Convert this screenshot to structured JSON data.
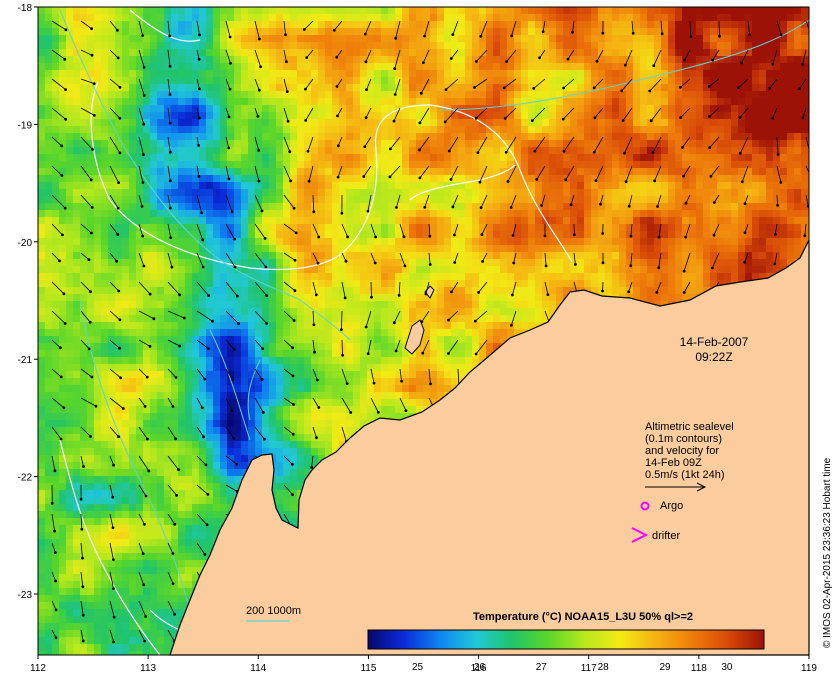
{
  "map": {
    "x_axis_ticks": [
      "112",
      "113",
      "114",
      "115",
      "116",
      "117",
      "118",
      "119"
    ],
    "y_axis_ticks": [
      "-18",
      "-19",
      "-20",
      "-21",
      "-22",
      "-23"
    ],
    "date_line": "14-Feb-2007",
    "time_line": "09:22Z",
    "legend_lines": [
      "Altimetric sealevel",
      "(0.1m contours)",
      "and velocity for",
      "14-Feb 09Z",
      "0.5m/s (1kt 24h)"
    ],
    "argo_label": "Argo",
    "drifter_label": "drifter",
    "bathymetry_label": "200  1000m",
    "credit": "© IMOS 02-Apr-2015 23:36:23 Hobart time",
    "colors": {
      "land": "#fbcc9e",
      "argo_symbol": "#ff00ff",
      "drifter_symbol": "#ff00ff",
      "isobath": "#5fd3d3",
      "sealevel_contour": "#ffffff"
    }
  },
  "colorbar": {
    "title": "Temperature (°C) NOAA15_L3U 50% ql>=2",
    "ticks": [
      "25",
      "26",
      "27",
      "28",
      "29",
      "30"
    ],
    "min": 24.2,
    "max": 30.6,
    "stops": [
      "#08086e",
      "#0a2bd8",
      "#0f86f0",
      "#22c8d8",
      "#20c46a",
      "#5ad62a",
      "#b6e81e",
      "#f2ea16",
      "#f5b212",
      "#ee7d0a",
      "#d84a08",
      "#9c1206"
    ]
  }
}
